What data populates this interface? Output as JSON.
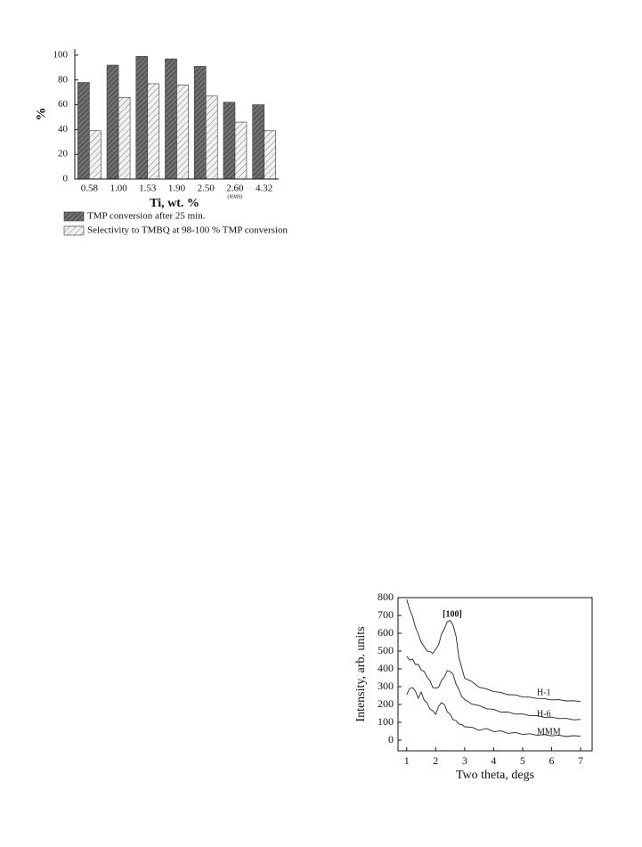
{
  "chart_data": [
    {
      "type": "bar",
      "xlabel": "Ti, wt. %",
      "ylabel": "%",
      "categories": [
        "0.58",
        "1.00",
        "1.53",
        "1.90",
        "2.50",
        "2.60",
        "4.32"
      ],
      "category_notes": [
        null,
        null,
        null,
        null,
        null,
        "(HMS)",
        null
      ],
      "series": [
        {
          "name": "TMP conversion after 25 min.",
          "color": "#707070",
          "values": [
            78,
            92,
            99,
            97,
            91,
            62,
            60
          ]
        },
        {
          "name": "Selectivity to TMBQ at 98-100 % TMP conversion",
          "color": "#f2f2f2",
          "values": [
            39,
            66,
            77,
            76,
            67,
            46,
            39
          ]
        }
      ],
      "ylim": [
        0,
        105
      ],
      "yticks": [
        0,
        20,
        40,
        60,
        80,
        100
      ]
    },
    {
      "type": "line",
      "xlabel": "Two theta, degs",
      "ylabel": "Intensity, arb. units",
      "annotation": "[100]",
      "x": [
        1.0,
        1.1,
        1.2,
        1.3,
        1.4,
        1.5,
        1.6,
        1.7,
        1.8,
        1.9,
        2.0,
        2.1,
        2.2,
        2.3,
        2.4,
        2.5,
        2.6,
        2.7,
        2.8,
        2.9,
        3.0,
        3.25,
        3.5,
        3.75,
        4.0,
        4.25,
        4.5,
        4.75,
        5.0,
        5.25,
        5.5,
        5.75,
        6.0,
        6.25,
        6.5,
        6.75,
        7.0
      ],
      "series": [
        {
          "name": "H-1",
          "color": "#222222",
          "values": [
            790,
            735,
            695,
            635,
            595,
            550,
            525,
            500,
            498,
            487,
            510,
            535,
            595,
            625,
            665,
            672,
            645,
            585,
            465,
            405,
            348,
            328,
            297,
            288,
            272,
            268,
            255,
            254,
            243,
            241,
            234,
            233,
            226,
            227,
            220,
            221,
            217
          ]
        },
        {
          "name": "H-6",
          "color": "#222222",
          "values": [
            470,
            450,
            455,
            425,
            425,
            395,
            385,
            355,
            335,
            295,
            292,
            297,
            335,
            355,
            390,
            385,
            370,
            315,
            285,
            245,
            228,
            202,
            194,
            176,
            173,
            157,
            158,
            146,
            147,
            137,
            137,
            128,
            129,
            121,
            122,
            114,
            116
          ]
        },
        {
          "name": "MMM",
          "color": "#222222",
          "values": [
            255,
            290,
            295,
            275,
            235,
            270,
            225,
            210,
            175,
            165,
            145,
            190,
            210,
            200,
            160,
            145,
            115,
            110,
            90,
            88,
            75,
            72,
            55,
            65,
            48,
            52,
            38,
            43,
            32,
            36,
            27,
            31,
            24,
            28,
            20,
            25,
            22
          ]
        }
      ],
      "xlim": [
        0.7,
        7.4
      ],
      "xticks": [
        1,
        2,
        3,
        4,
        5,
        6,
        7
      ],
      "ylim": [
        -60,
        800
      ],
      "yticks": [
        0,
        100,
        200,
        300,
        400,
        500,
        600,
        700,
        800
      ]
    }
  ]
}
